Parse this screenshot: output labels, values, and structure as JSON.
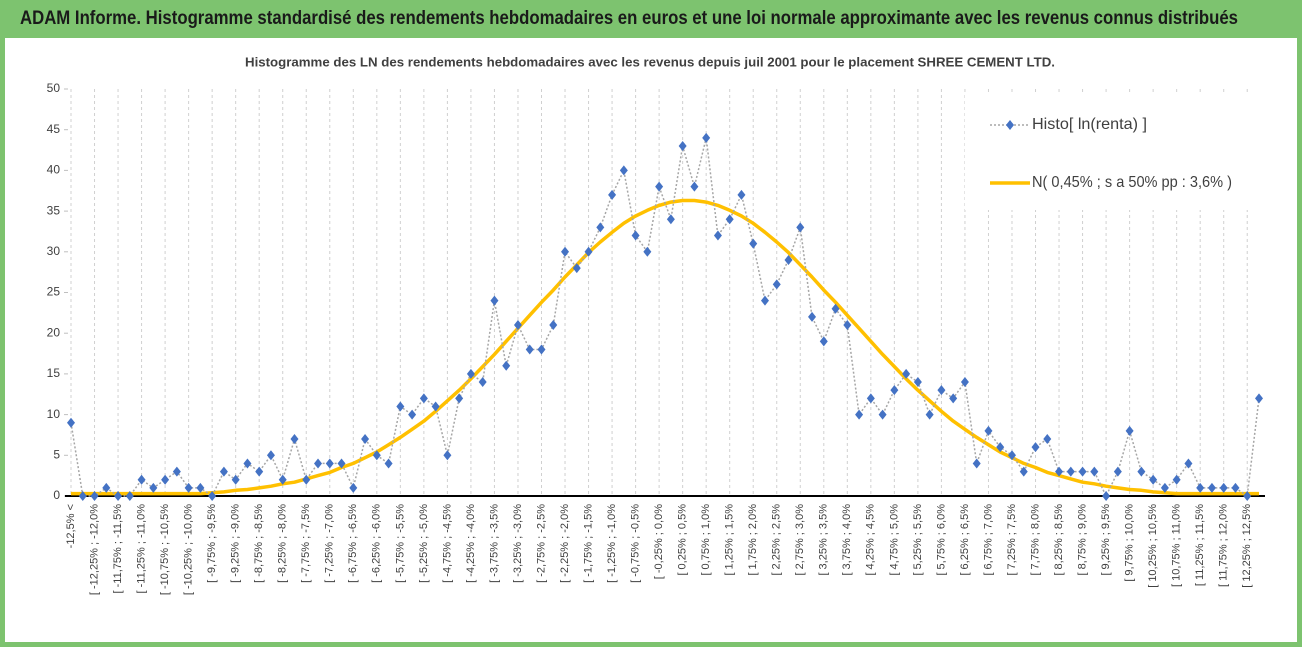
{
  "chart_data": {
    "type": "line",
    "title": "ADAM Informe. Histogramme standardisé des rendements hebdomadaires en euros et une loi normale approximante avec les revenus connus distribués",
    "subtitle": "Histogramme des LN des rendements hebdomadaires avec les revenus depuis juil 2001 pour le placement SHREE CEMENT LTD.",
    "categories": [
      "-12,5% <",
      null,
      "[ -12,25% ; -12,0%",
      null,
      "[ -11,75% ; -11,5%",
      null,
      "[ -11,25% ; -11,0%",
      null,
      "[ -10,75% ; -10,5%",
      null,
      "[ -10,25% ; -10,0%",
      null,
      "[ -9,75% ; -9,5%",
      null,
      "[ -9,25% ; -9,0%",
      null,
      "[ -8,75% ; -8,5%",
      null,
      "[ -8,25% ; -8,0%",
      null,
      "[ -7,75% ; -7,5%",
      null,
      "[ -7,25% ; -7,0%",
      null,
      "[ -6,75% ; -6,5%",
      null,
      "[ -6,25% ; -6,0%",
      null,
      "[ -5,75% ; -5,5%",
      null,
      "[ -5,25% ; -5,0%",
      null,
      "[ -4,75% ; -4,5%",
      null,
      "[ -4,25% ; -4,0%",
      null,
      "[ -3,75% ; -3,5%",
      null,
      "[ -3,25% ; -3,0%",
      null,
      "[ -2,75% ; -2,5%",
      null,
      "[ -2,25% ; -2,0%",
      null,
      "[ -1,75% ; -1,5%",
      null,
      "[ -1,25% ; -1,0%",
      null,
      "[ -0,75% ; -0,5%",
      null,
      "[ -0,25% ; 0,0%",
      null,
      "[ 0,25% ; 0,5%",
      null,
      "[ 0,75% ; 1,0%",
      null,
      "[ 1,25% ; 1,5%",
      null,
      "[ 1,75% ; 2,0%",
      null,
      "[ 2,25% ; 2,5%",
      null,
      "[ 2,75% ; 3,0%",
      null,
      "[ 3,25% ; 3,5%",
      null,
      "[ 3,75% ; 4,0%",
      null,
      "[ 4,25% ; 4,5%",
      null,
      "[ 4,75% ; 5,0%",
      null,
      "[ 5,25% ; 5,5%",
      null,
      "[ 5,75% ; 6,0%",
      null,
      "[ 6,25% ; 6,5%",
      null,
      "[ 6,75% ; 7,0%",
      null,
      "[ 7,25% ; 7,5%",
      null,
      "[ 7,75% ; 8,0%",
      null,
      "[ 8,25% ; 8,5%",
      null,
      "[ 8,75% ; 9,0%",
      null,
      "[ 9,25% ; 9,5%",
      null,
      "[ 9,75% ; 10,0%",
      null,
      "[ 10,25% ; 10,5%",
      null,
      "[ 10,75% ; 11,0%",
      null,
      "[ 11,25% ; 11,5%",
      null,
      "[ 11,75% ; 12,0%",
      null,
      "[ 12,25% ; 12,5%",
      null
    ],
    "series": [
      {
        "name": "Histo[ ln(renta) ]",
        "color": "#4472c4",
        "line_color": "#a6a6a6",
        "marker": "diamond",
        "values": [
          9,
          0,
          0,
          1,
          0,
          0,
          2,
          1,
          2,
          3,
          1,
          1,
          0,
          3,
          2,
          4,
          3,
          5,
          2,
          7,
          2,
          4,
          4,
          4,
          1,
          7,
          5,
          4,
          11,
          10,
          12,
          11,
          5,
          12,
          15,
          14,
          24,
          16,
          21,
          18,
          18,
          21,
          30,
          28,
          30,
          33,
          37,
          40,
          32,
          30,
          38,
          34,
          43,
          38,
          44,
          32,
          34,
          37,
          31,
          24,
          26,
          29,
          33,
          22,
          19,
          23,
          21,
          10,
          12,
          10,
          13,
          15,
          14,
          10,
          13,
          12,
          14,
          4,
          8,
          6,
          5,
          3,
          6,
          7,
          3,
          3,
          3,
          3,
          0,
          3,
          8,
          3,
          2,
          1,
          2,
          4,
          1,
          1,
          1,
          1,
          0,
          12
        ]
      },
      {
        "name": "N( 0,45% ; s a 50% pp : 3,6% )",
        "color": "#ffc000",
        "marker": null,
        "values": [
          0.3,
          0.3,
          0.3,
          0.3,
          0.3,
          0.3,
          0.3,
          0.3,
          0.3,
          0.3,
          0.3,
          0.3,
          0.4,
          0.5,
          0.7,
          0.8,
          1.0,
          1.2,
          1.5,
          1.7,
          2.1,
          2.5,
          2.9,
          3.5,
          4.0,
          4.7,
          5.4,
          6.3,
          7.2,
          8.2,
          9.2,
          10.4,
          11.7,
          13.0,
          14.4,
          15.9,
          17.4,
          19.0,
          20.6,
          22.2,
          23.8,
          25.3,
          26.9,
          28.4,
          29.9,
          31.2,
          32.4,
          33.5,
          34.4,
          35.1,
          35.7,
          36.1,
          36.3,
          36.3,
          36.1,
          35.7,
          35.1,
          34.4,
          33.5,
          32.4,
          31.2,
          29.9,
          28.4,
          26.9,
          25.3,
          23.8,
          22.2,
          20.6,
          19.0,
          17.4,
          15.9,
          14.4,
          13.0,
          11.7,
          10.4,
          9.2,
          8.2,
          7.2,
          6.3,
          5.4,
          4.7,
          4.0,
          3.5,
          2.9,
          2.5,
          2.1,
          1.7,
          1.5,
          1.2,
          1.0,
          0.8,
          0.7,
          0.5,
          0.4,
          0.3,
          0.3,
          0.3,
          0.3,
          0.3,
          0.3,
          0.3,
          0.3
        ]
      }
    ],
    "ylim": [
      0,
      50
    ],
    "yticks": [
      0,
      5,
      10,
      15,
      20,
      25,
      30,
      35,
      40,
      45,
      50
    ],
    "grid": true,
    "legend": "top-right"
  }
}
